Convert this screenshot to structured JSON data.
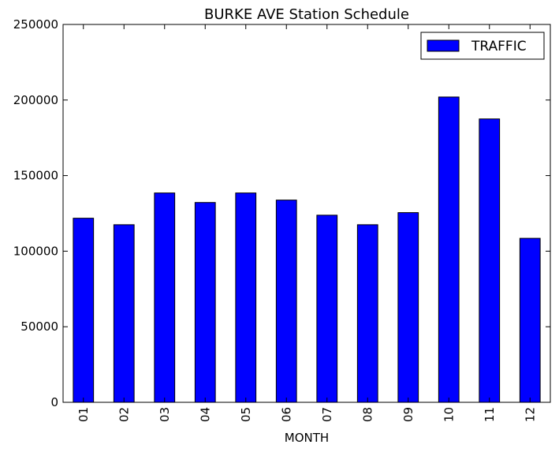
{
  "chart_data": {
    "type": "bar",
    "title": "BURKE AVE Station Schedule",
    "xlabel": "MONTH",
    "ylabel": "",
    "categories": [
      "01",
      "02",
      "03",
      "04",
      "05",
      "06",
      "07",
      "08",
      "09",
      "10",
      "11",
      "12"
    ],
    "series": [
      {
        "name": "TRAFFIC",
        "color": "#0000ff",
        "values": [
          121800,
          117500,
          138500,
          132200,
          138500,
          133800,
          123800,
          117500,
          125500,
          202000,
          187500,
          108500
        ]
      }
    ],
    "ylim": [
      0,
      250000
    ],
    "yticks": [
      "0",
      "50000",
      "100000",
      "150000",
      "200000",
      "250000"
    ],
    "grid": false,
    "legend_position": "top-right"
  }
}
